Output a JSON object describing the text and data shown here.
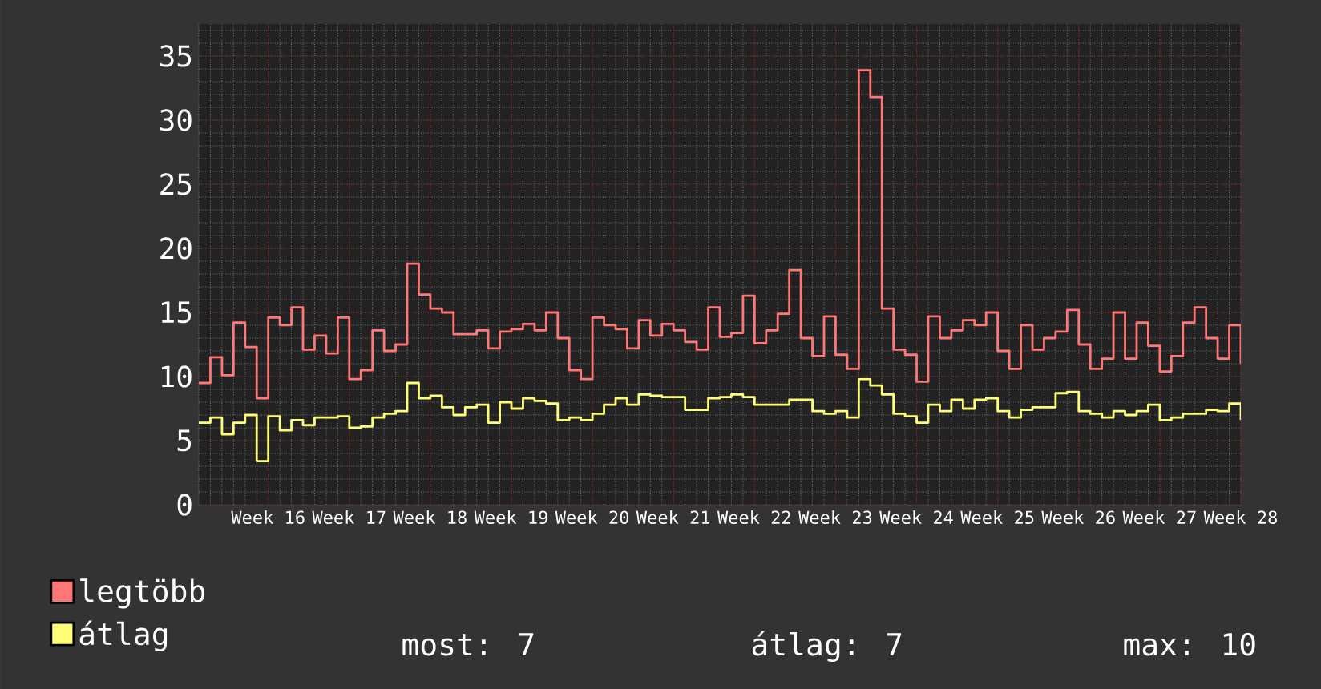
{
  "chart_data": {
    "type": "step",
    "categories": [
      null,
      null,
      null,
      null,
      null,
      null,
      "Week 16",
      null,
      null,
      null,
      null,
      null,
      null,
      "Week 17",
      null,
      null,
      null,
      null,
      null,
      null,
      "Week 18",
      null,
      null,
      null,
      null,
      null,
      null,
      "Week 19",
      null,
      null,
      null,
      null,
      null,
      null,
      "Week 20",
      null,
      null,
      null,
      null,
      null,
      null,
      "Week 21",
      null,
      null,
      null,
      null,
      null,
      null,
      "Week 22",
      null,
      null,
      null,
      null,
      null,
      null,
      "Week 23",
      null,
      null,
      null,
      null,
      null,
      null,
      "Week 24",
      null,
      null,
      null,
      null,
      null,
      null,
      "Week 25",
      null,
      null,
      null,
      null,
      null,
      null,
      "Week 26",
      null,
      null,
      null,
      null,
      null,
      null,
      "Week 27",
      null,
      null,
      null,
      null,
      null,
      null,
      "Week 28"
    ],
    "series": [
      {
        "name": "legtöbb",
        "color": "#ff7777",
        "values": [
          9.5,
          11.5,
          10.1,
          14.2,
          12.3,
          8.3,
          14.6,
          14.0,
          15.4,
          12.1,
          13.2,
          11.8,
          14.6,
          9.8,
          10.5,
          13.6,
          12.0,
          12.5,
          18.8,
          16.4,
          15.3,
          15.0,
          13.3,
          13.3,
          13.6,
          12.2,
          13.5,
          13.7,
          14.1,
          13.6,
          15.0,
          13.0,
          10.5,
          9.8,
          14.6,
          14.0,
          13.7,
          12.2,
          14.4,
          13.2,
          14.1,
          13.6,
          12.7,
          12.1,
          15.4,
          13.1,
          13.4,
          16.3,
          12.6,
          13.6,
          14.9,
          18.3,
          13.0,
          11.6,
          14.7,
          11.7,
          10.6,
          33.9,
          31.8,
          15.3,
          12.1,
          11.7,
          9.6,
          14.7,
          13.0,
          13.6,
          14.4,
          14.0,
          15.0,
          12.0,
          10.6,
          14.0,
          12.1,
          13.0,
          13.5,
          15.2,
          12.5,
          10.6,
          11.4,
          15.0,
          11.4,
          14.2,
          12.4,
          10.4,
          11.6,
          14.2,
          15.4,
          13.0,
          11.4,
          14.0,
          11.0
        ]
      },
      {
        "name": "átlag",
        "color": "#ffff77",
        "values": [
          6.4,
          6.8,
          5.5,
          6.4,
          7.0,
          3.4,
          6.9,
          5.8,
          6.6,
          6.2,
          6.8,
          6.8,
          6.9,
          6.0,
          6.1,
          6.8,
          7.1,
          7.3,
          9.5,
          8.3,
          8.5,
          7.6,
          7.0,
          7.6,
          7.8,
          6.4,
          8.0,
          7.5,
          8.3,
          8.1,
          7.9,
          6.6,
          6.8,
          6.6,
          7.1,
          7.8,
          8.3,
          7.8,
          8.6,
          8.5,
          8.4,
          8.4,
          7.4,
          7.4,
          8.3,
          8.4,
          8.6,
          8.4,
          7.8,
          7.8,
          7.8,
          8.2,
          8.2,
          7.3,
          7.1,
          7.3,
          6.8,
          9.8,
          9.3,
          8.6,
          7.1,
          6.9,
          6.4,
          7.8,
          7.3,
          8.2,
          7.5,
          8.2,
          8.3,
          7.3,
          6.8,
          7.4,
          7.6,
          7.6,
          8.7,
          8.8,
          7.3,
          7.1,
          6.8,
          7.3,
          7.0,
          7.3,
          7.8,
          6.6,
          6.8,
          7.1,
          7.1,
          7.4,
          7.3,
          7.9,
          6.6
        ]
      }
    ],
    "ylim": [
      0,
      37.5
    ],
    "yticks": [
      0,
      5,
      10,
      15,
      20,
      25,
      30,
      35
    ],
    "grid": true,
    "legend": "bottom",
    "annotations": [
      "most: 7",
      "átlag: 7",
      "max: 10"
    ]
  }
}
